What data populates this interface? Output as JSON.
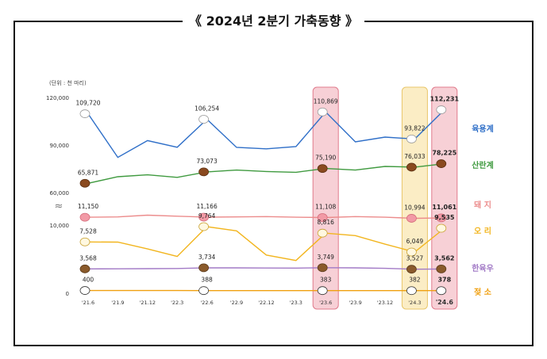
{
  "title": "《 2024년 2분기 가축동향 》",
  "unit_label": "(단위 : 천 마리)",
  "colors": {
    "chicken": "#2f6fc8",
    "layer": "#3f9a3f",
    "pig": "#ec8c8c",
    "duck": "#f2b51e",
    "cattle": "#a27ac6",
    "dairy": "#f0a010",
    "highlight_pink": "#f7d0d6",
    "highlight_yellow": "#fbedc5"
  },
  "chart_data": {
    "type": "line",
    "title": "2024년 2분기 가축동향",
    "ylabel": "천 마리",
    "x": [
      "'21.6",
      "'21.9",
      "'21.12",
      "'22.3",
      "'22.6",
      "'22.9",
      "'22.12",
      "'23.3",
      "'23.6",
      "'23.9",
      "'23.12",
      "'24.3",
      "'24.6"
    ],
    "y_ticks_upper": [
      "120,000",
      "90,000",
      "60,000"
    ],
    "y_ticks_lower": [
      "10,000",
      "0"
    ],
    "axis_break": "≈",
    "highlights": [
      "'23.6",
      "'24.3",
      "'24.6"
    ],
    "series": [
      {
        "key": "chicken",
        "name": "육용계",
        "values": [
          109720,
          82200,
          92800,
          88600,
          106254,
          88500,
          87600,
          89000,
          110869,
          92000,
          95000,
          93822,
          112231
        ],
        "labels": {
          "0": "109,720",
          "4": "106,254",
          "8": "110,869",
          "11": "93,822",
          "12": "112,231"
        }
      },
      {
        "key": "layer",
        "name": "산란계",
        "values": [
          65871,
          70000,
          71200,
          69600,
          73073,
          74200,
          73300,
          72800,
          75190,
          74200,
          76500,
          76033,
          78225
        ],
        "labels": {
          "0": "65,871",
          "4": "73,073",
          "8": "75,190",
          "11": "76,033",
          "12": "78,225"
        }
      },
      {
        "key": "pig",
        "name": "돼 지",
        "values": [
          11150,
          11200,
          11450,
          11300,
          11166,
          11200,
          11250,
          11150,
          11108,
          11250,
          11150,
          10994,
          11061
        ],
        "labels": {
          "0": "11,150",
          "4": "11,166",
          "8": "11,108",
          "11": "10,994",
          "12": "11,061"
        }
      },
      {
        "key": "duck",
        "name": "오 리",
        "values": [
          7528,
          7500,
          6500,
          5400,
          9764,
          9150,
          5600,
          4800,
          8816,
          8450,
          7200,
          6049,
          9535
        ],
        "labels": {
          "0": "7,528",
          "4": "9,764",
          "8": "8,816",
          "11": "6,049",
          "12": "9,535"
        }
      },
      {
        "key": "cattle",
        "name": "한육우",
        "values": [
          3568,
          3580,
          3600,
          3630,
          3734,
          3720,
          3700,
          3690,
          3749,
          3720,
          3650,
          3527,
          3562
        ],
        "labels": {
          "0": "3,568",
          "4": "3,734",
          "8": "3,749",
          "11": "3,527",
          "12": "3,562"
        }
      },
      {
        "key": "dairy",
        "name": "젖 소",
        "values": [
          400,
          395,
          392,
          390,
          388,
          386,
          385,
          384,
          383,
          383,
          382,
          382,
          378
        ],
        "labels": {
          "0": "400",
          "4": "388",
          "8": "383",
          "11": "382",
          "12": "378"
        }
      }
    ]
  }
}
